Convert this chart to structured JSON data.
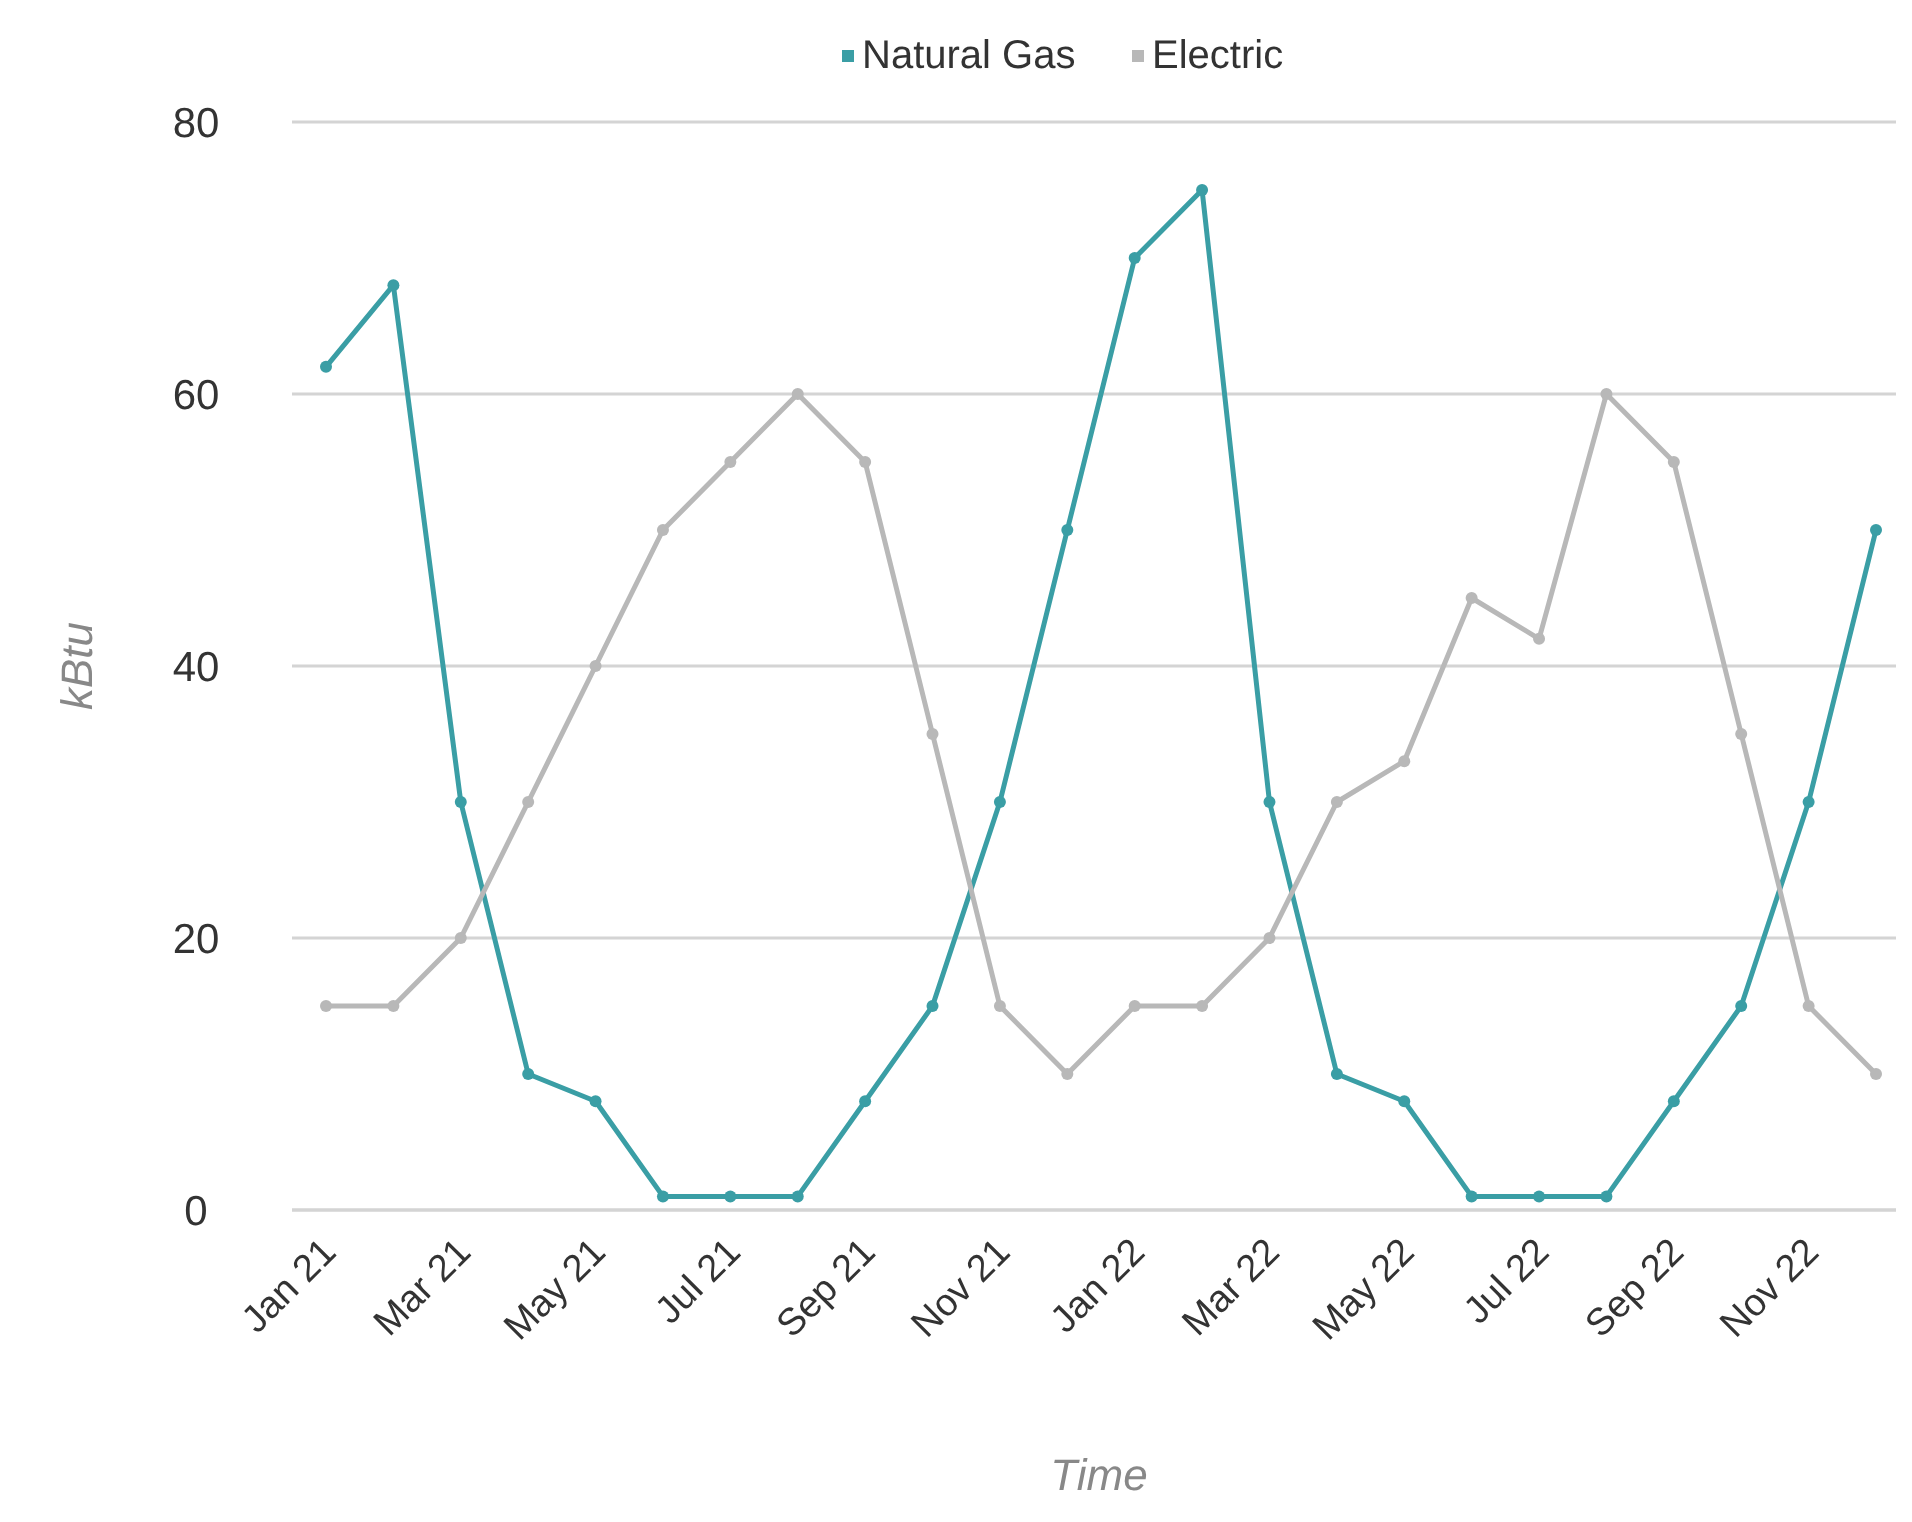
{
  "chart_data": {
    "type": "line",
    "xlabel": "Time",
    "ylabel": "kBtu",
    "categories": [
      "Jan 21",
      null,
      "Mar 21",
      null,
      "May 21",
      null,
      "Jul 21",
      null,
      "Sep 21",
      null,
      "Nov 21",
      null,
      "Jan 22",
      null,
      "Mar 22",
      null,
      "May 22",
      null,
      "Jul 22",
      null,
      "Sep 22",
      null,
      "Nov 22",
      null
    ],
    "series": [
      {
        "name": "Natural Gas",
        "color": "#3a9ea5",
        "values": [
          62,
          68,
          30,
          10,
          8,
          1,
          1,
          1,
          8,
          15,
          30,
          50,
          70,
          75,
          30,
          10,
          8,
          1,
          1,
          1,
          8,
          15,
          30,
          50
        ]
      },
      {
        "name": "Electric",
        "color": "#b8b8b8",
        "values": [
          15,
          15,
          20,
          30,
          40,
          50,
          55,
          60,
          55,
          35,
          15,
          10,
          15,
          15,
          20,
          30,
          33,
          45,
          42,
          60,
          55,
          35,
          15,
          10
        ]
      }
    ],
    "ylim": [
      0,
      80
    ],
    "yticks": [
      0,
      20,
      40,
      60,
      80
    ],
    "grid": "y",
    "legend": "top",
    "marker": "circle",
    "line_style": "solid"
  }
}
